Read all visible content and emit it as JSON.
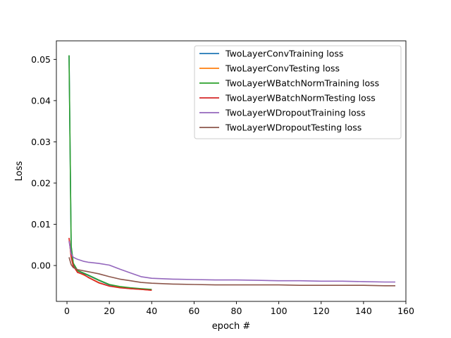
{
  "chart_data": {
    "type": "line",
    "title": "",
    "xlabel": "epoch #",
    "ylabel": "Loss",
    "xlim": [
      -5,
      160
    ],
    "ylim": [
      -0.0087,
      0.0545
    ],
    "xticks": [
      0,
      20,
      40,
      60,
      80,
      100,
      120,
      140,
      160
    ],
    "yticks": [
      0.0,
      0.01,
      0.02,
      0.03,
      0.04,
      0.05
    ],
    "ytick_labels": [
      "0.00",
      "0.01",
      "0.02",
      "0.03",
      "0.04",
      "0.05"
    ],
    "grid": false,
    "legend_position": "top-right",
    "series": [
      {
        "name": "TwoLayerConvTraining loss",
        "color": "#1f77b4",
        "x": [
          1,
          2,
          3,
          5,
          10,
          15,
          20,
          25,
          30,
          35,
          40
        ],
        "y": [
          0.0509,
          0.0045,
          0.0004,
          -0.0013,
          -0.0024,
          -0.0036,
          -0.0047,
          -0.0052,
          -0.0055,
          -0.0057,
          -0.0059
        ]
      },
      {
        "name": "TwoLayerConvTesting loss",
        "color": "#ff7f0e",
        "x": [
          1,
          2,
          3,
          5,
          10,
          15,
          20,
          25,
          30,
          35,
          40
        ],
        "y": [
          0.0066,
          0.0021,
          -0.0002,
          -0.0016,
          -0.0028,
          -0.0041,
          -0.005,
          -0.0053,
          -0.0056,
          -0.0058,
          -0.006
        ]
      },
      {
        "name": "TwoLayerWBatchNormTraining loss",
        "color": "#2ca02c",
        "x": [
          1,
          2,
          3,
          5,
          10,
          15,
          20,
          25,
          30,
          35,
          40
        ],
        "y": [
          0.051,
          0.0048,
          0.0006,
          -0.0012,
          -0.0023,
          -0.0035,
          -0.0046,
          -0.0051,
          -0.0054,
          -0.0056,
          -0.0058
        ]
      },
      {
        "name": "TwoLayerWBatchNormTesting loss",
        "color": "#d62728",
        "x": [
          1,
          2,
          3,
          5,
          8,
          10,
          15,
          20,
          25,
          30,
          35,
          40
        ],
        "y": [
          0.0067,
          0.002,
          -0.0001,
          -0.0017,
          -0.0022,
          -0.0029,
          -0.0042,
          -0.005,
          -0.0054,
          -0.0056,
          -0.0058,
          -0.006
        ]
      },
      {
        "name": "TwoLayerWDropoutTraining loss",
        "color": "#9467bd",
        "x": [
          1,
          2,
          3,
          5,
          8,
          10,
          15,
          20,
          25,
          30,
          35,
          40,
          50,
          60,
          70,
          80,
          90,
          100,
          110,
          120,
          130,
          140,
          150,
          155
        ],
        "y": [
          0.0059,
          0.0029,
          0.002,
          0.0015,
          0.001,
          0.0008,
          0.0005,
          0.0001,
          -0.0009,
          -0.0018,
          -0.0027,
          -0.0031,
          -0.0033,
          -0.0034,
          -0.0035,
          -0.0035,
          -0.0036,
          -0.0037,
          -0.0037,
          -0.0038,
          -0.0038,
          -0.0039,
          -0.004,
          -0.004
        ]
      },
      {
        "name": "TwoLayerWDropoutTesting loss",
        "color": "#8c564b",
        "x": [
          1,
          2,
          3,
          5,
          8,
          10,
          15,
          20,
          25,
          30,
          35,
          40,
          50,
          60,
          70,
          80,
          90,
          100,
          110,
          120,
          130,
          140,
          150,
          155
        ],
        "y": [
          0.002,
          0.0002,
          -0.0005,
          -0.001,
          -0.0013,
          -0.0015,
          -0.002,
          -0.0027,
          -0.0033,
          -0.0037,
          -0.0041,
          -0.0043,
          -0.0045,
          -0.0046,
          -0.0047,
          -0.0047,
          -0.0047,
          -0.0047,
          -0.0048,
          -0.0048,
          -0.0048,
          -0.0048,
          -0.0049,
          -0.0049
        ]
      }
    ]
  }
}
